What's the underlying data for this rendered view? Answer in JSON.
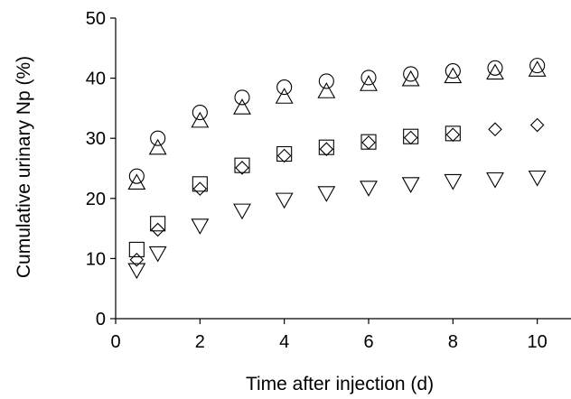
{
  "chart_data": {
    "type": "scatter",
    "title": "",
    "xlabel": "Time after injection (d)",
    "ylabel": "Cumulative urinary Np (%)",
    "xlim": [
      0,
      10.8
    ],
    "ylim": [
      0,
      50
    ],
    "xticks": [
      0,
      2,
      4,
      6,
      8,
      10
    ],
    "yticks": [
      0,
      10,
      20,
      30,
      40,
      50
    ],
    "grid": false,
    "legend": "none",
    "series": [
      {
        "marker": "circle",
        "x": [
          0.5,
          1,
          2,
          3,
          4,
          5,
          6,
          7,
          8,
          9,
          10
        ],
        "y": [
          23.7,
          30.0,
          34.3,
          36.8,
          38.5,
          39.5,
          40.1,
          40.7,
          41.2,
          41.7,
          42.1
        ]
      },
      {
        "marker": "triangle-up",
        "x": [
          0.5,
          1,
          2,
          3,
          4,
          5,
          6,
          7,
          8,
          9,
          10
        ],
        "y": [
          22.6,
          28.4,
          32.9,
          35.1,
          36.9,
          37.8,
          39.0,
          39.8,
          40.3,
          40.9,
          41.4
        ]
      },
      {
        "marker": "square",
        "x": [
          0.5,
          1,
          2,
          3,
          4,
          5,
          6,
          7,
          8
        ],
        "y": [
          11.5,
          15.8,
          22.4,
          25.5,
          27.4,
          28.5,
          29.4,
          30.3,
          30.8
        ]
      },
      {
        "marker": "diamond",
        "x": [
          0.5,
          1,
          2,
          3,
          4,
          5,
          6,
          7,
          8,
          9,
          10
        ],
        "y": [
          9.8,
          14.8,
          21.6,
          25.1,
          27.1,
          28.2,
          29.3,
          30.1,
          30.6,
          31.5,
          32.2
        ]
      },
      {
        "marker": "triangle-down",
        "x": [
          0.5,
          1,
          2,
          3,
          4,
          5,
          6,
          7,
          8,
          9,
          10
        ],
        "y": [
          8.1,
          10.9,
          15.5,
          18.0,
          19.8,
          20.9,
          21.8,
          22.4,
          22.9,
          23.2,
          23.5
        ]
      }
    ]
  }
}
